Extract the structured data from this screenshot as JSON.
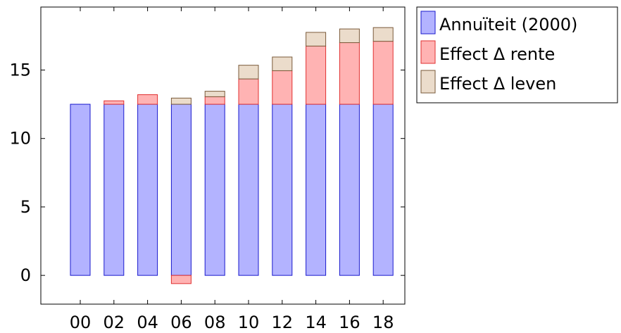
{
  "chart_data": {
    "type": "bar",
    "stacked": true,
    "categories": [
      "00",
      "02",
      "04",
      "06",
      "08",
      "10",
      "12",
      "14",
      "16",
      "18"
    ],
    "series": [
      {
        "name": "Annuïteit (2000)",
        "fill": "#b3b3ff",
        "stroke": "#1a1acc",
        "values": [
          12.5,
          12.5,
          12.5,
          12.5,
          12.5,
          12.5,
          12.5,
          12.5,
          12.5,
          12.5
        ]
      },
      {
        "name": "Effect Δ rente",
        "fill": "#ffb3b3",
        "stroke": "#e03030",
        "values": [
          0,
          0.25,
          0.7,
          -0.6,
          0.55,
          1.85,
          2.45,
          4.25,
          4.5,
          4.6
        ]
      },
      {
        "name": "Effect Δ leven",
        "fill": "#ebdccb",
        "stroke": "#7a5a3a",
        "values": [
          0,
          0,
          0,
          0.45,
          0.4,
          1.0,
          1.0,
          1.0,
          1.0,
          1.0
        ]
      }
    ],
    "yticks": [
      0,
      5,
      10,
      15
    ],
    "ylim": [
      -2.1,
      19.6
    ],
    "xlabel": "",
    "ylabel": "",
    "grid": false,
    "legend_position": "outside-top-right"
  }
}
